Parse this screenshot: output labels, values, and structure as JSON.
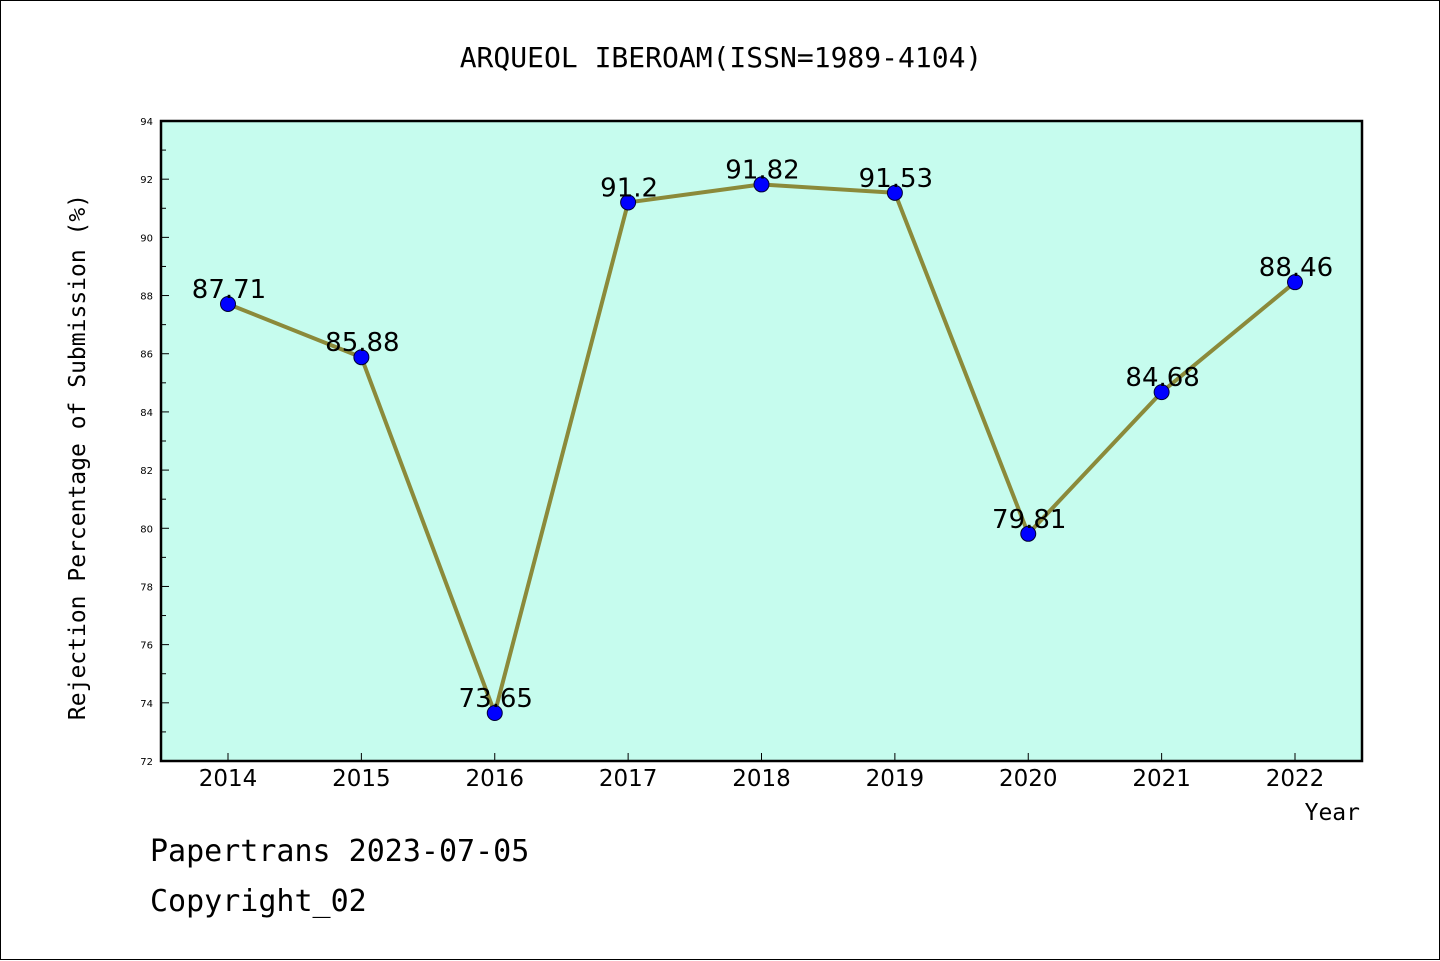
{
  "chart_data": {
    "type": "line",
    "title": "ARQUEOL IBEROAM(ISSN=1989-4104)",
    "xlabel": "Year",
    "ylabel": "Rejection Percentage of Submission (%)",
    "categories": [
      "2014",
      "2015",
      "2016",
      "2017",
      "2018",
      "2019",
      "2020",
      "2021",
      "2022"
    ],
    "values": [
      87.71,
      85.88,
      73.65,
      91.2,
      91.82,
      91.53,
      79.81,
      84.68,
      88.46
    ],
    "data_labels": [
      "87.71",
      "85.88",
      "73.65",
      "91.2",
      "91.82",
      "91.53",
      "79.81",
      "84.68",
      "88.46"
    ],
    "ylim": [
      72,
      94
    ],
    "yticks": [
      "72",
      "74",
      "76",
      "78",
      "80",
      "82",
      "84",
      "86",
      "88",
      "90",
      "92",
      "94"
    ],
    "grid": false,
    "legend": "none",
    "colors": {
      "plot_background": "#c6fcee",
      "line": "#8b8a3a",
      "marker": "#0000ff"
    }
  },
  "footer": {
    "line1": "Papertrans 2023-07-05",
    "line2": "Copyright_02"
  }
}
